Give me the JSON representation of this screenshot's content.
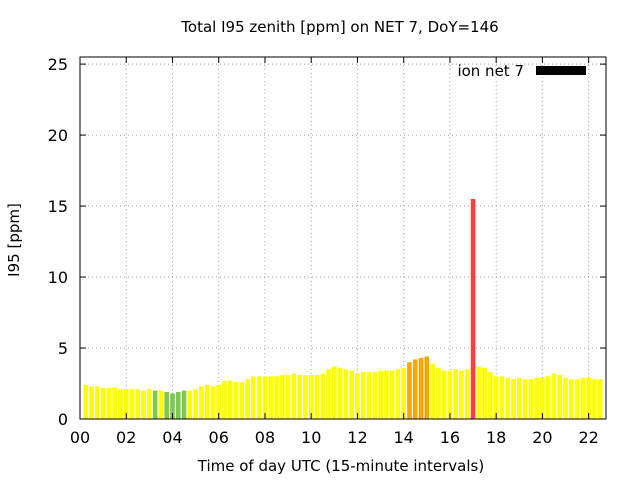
{
  "chart_data": {
    "type": "bar",
    "title": "Total I95 zenith [ppm] on NET 7, DoY=146",
    "xlabel": "Time of day UTC (15-minute intervals)",
    "ylabel": "I95 [ppm]",
    "ylim": [
      0,
      25.5
    ],
    "xlim": [
      0,
      22.75
    ],
    "bar_width_hours": 0.2,
    "y_ticks": [
      0,
      5,
      10,
      15,
      20,
      25
    ],
    "x_ticks": [
      0,
      2,
      4,
      6,
      8,
      10,
      12,
      14,
      16,
      18,
      20,
      22
    ],
    "x_tick_labels": [
      "00",
      "02",
      "04",
      "06",
      "08",
      "10",
      "12",
      "14",
      "16",
      "18",
      "20",
      "22"
    ],
    "grid": true,
    "legend": {
      "label": "ion net 7",
      "color": "#000000",
      "position": "top-right"
    },
    "colors": {
      "green": "#7ec850",
      "yellow": "#ffff00",
      "orange": "#ffa500",
      "red": "#ff4040"
    },
    "series": [
      {
        "x": [
          0.25,
          0.5,
          0.75,
          1.0,
          1.25,
          1.5,
          1.75,
          2.0,
          2.25,
          2.5,
          2.75,
          3.0,
          3.25,
          3.5,
          3.75,
          4.0,
          4.25,
          4.5,
          4.75,
          5.0,
          5.25,
          5.5,
          5.75,
          6.0,
          6.25,
          6.5,
          6.75,
          7.0,
          7.25,
          7.5,
          7.75,
          8.0,
          8.25,
          8.5,
          8.75,
          9.0,
          9.25,
          9.5,
          9.75,
          10.0,
          10.25,
          10.5,
          10.75,
          11.0,
          11.25,
          11.5,
          11.75,
          12.0,
          12.25,
          12.5,
          12.75,
          13.0,
          13.25,
          13.5,
          13.75,
          14.0,
          14.25,
          14.5,
          14.75,
          15.0,
          15.25,
          15.5,
          15.75,
          16.0,
          16.25,
          16.5,
          16.75,
          17.0,
          17.25,
          17.5,
          17.75,
          18.0,
          18.25,
          18.5,
          18.75,
          19.0,
          19.25,
          19.5,
          19.75,
          20.0,
          20.25,
          20.5,
          20.75,
          21.0,
          21.25,
          21.5,
          21.75,
          22.0,
          22.25,
          22.5
        ],
        "values": [
          2.4,
          2.3,
          2.3,
          2.2,
          2.2,
          2.2,
          2.1,
          2.1,
          2.1,
          2.1,
          2.0,
          2.1,
          2.0,
          2.0,
          1.9,
          1.8,
          1.9,
          2.0,
          2.0,
          2.1,
          2.3,
          2.4,
          2.3,
          2.4,
          2.7,
          2.7,
          2.6,
          2.6,
          2.8,
          3.0,
          3.0,
          3.0,
          3.0,
          3.0,
          3.1,
          3.1,
          3.2,
          3.1,
          3.1,
          3.1,
          3.1,
          3.2,
          3.5,
          3.7,
          3.6,
          3.5,
          3.4,
          3.2,
          3.3,
          3.3,
          3.3,
          3.4,
          3.4,
          3.4,
          3.5,
          3.6,
          4.0,
          4.2,
          4.3,
          4.4,
          3.9,
          3.6,
          3.4,
          3.4,
          3.5,
          3.4,
          3.5,
          15.5,
          3.7,
          3.6,
          3.3,
          3.0,
          3.0,
          2.9,
          2.8,
          2.9,
          2.8,
          2.8,
          2.9,
          2.9,
          3.0,
          3.2,
          3.1,
          2.9,
          2.8,
          2.8,
          2.9,
          2.9,
          2.8,
          2.8
        ],
        "bar_colors": [
          "yellow",
          "yellow",
          "yellow",
          "yellow",
          "yellow",
          "yellow",
          "yellow",
          "yellow",
          "yellow",
          "yellow",
          "yellow",
          "yellow",
          "green",
          "yellow",
          "green",
          "green",
          "green",
          "green",
          "yellow",
          "yellow",
          "yellow",
          "yellow",
          "yellow",
          "yellow",
          "yellow",
          "yellow",
          "yellow",
          "yellow",
          "yellow",
          "yellow",
          "yellow",
          "yellow",
          "yellow",
          "yellow",
          "yellow",
          "yellow",
          "yellow",
          "yellow",
          "yellow",
          "yellow",
          "yellow",
          "yellow",
          "yellow",
          "yellow",
          "yellow",
          "yellow",
          "yellow",
          "yellow",
          "yellow",
          "yellow",
          "yellow",
          "yellow",
          "yellow",
          "yellow",
          "yellow",
          "yellow",
          "orange",
          "orange",
          "orange",
          "orange",
          "yellow",
          "yellow",
          "yellow",
          "yellow",
          "yellow",
          "yellow",
          "yellow",
          "red",
          "yellow",
          "yellow",
          "yellow",
          "yellow",
          "yellow",
          "yellow",
          "yellow",
          "yellow",
          "yellow",
          "yellow",
          "yellow",
          "yellow",
          "yellow",
          "yellow",
          "yellow",
          "yellow",
          "yellow",
          "yellow",
          "yellow",
          "yellow",
          "yellow",
          "yellow"
        ]
      }
    ]
  }
}
